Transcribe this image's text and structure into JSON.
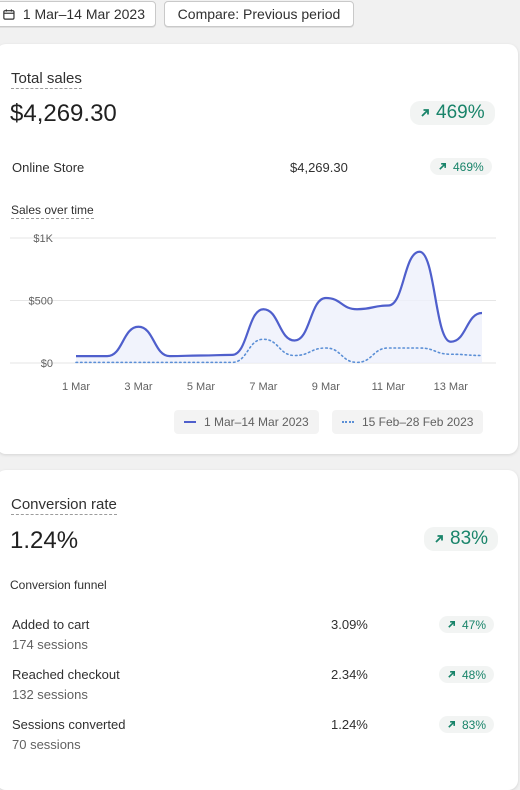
{
  "toolbar": {
    "date_range_label": "1 Mar–14 Mar 2023",
    "compare_label": "Compare: Previous period"
  },
  "sales": {
    "title": "Total sales",
    "total": "$4,269.30",
    "change": "469%",
    "channel": {
      "label": "Online Store",
      "value": "$4,269.30",
      "change": "469%"
    },
    "chart_title": "Sales over time"
  },
  "chart_data": {
    "type": "line",
    "title": "Sales over time",
    "x": [
      "1 Mar",
      "2 Mar",
      "3 Mar",
      "4 Mar",
      "5 Mar",
      "6 Mar",
      "7 Mar",
      "8 Mar",
      "9 Mar",
      "10 Mar",
      "11 Mar",
      "12 Mar",
      "13 Mar",
      "14 Mar"
    ],
    "x_tick_labels": [
      "1 Mar",
      "3 Mar",
      "5 Mar",
      "7 Mar",
      "9 Mar",
      "11 Mar",
      "13 Mar"
    ],
    "y_tick_labels": [
      "$1K",
      "$500",
      "$0"
    ],
    "ylim": [
      0,
      1000
    ],
    "grid": true,
    "legend_placement": "bottom-right",
    "series": [
      {
        "name": "1 Mar–14 Mar 2023",
        "style": "solid",
        "color": "#4f5fcc",
        "values": [
          55,
          55,
          290,
          55,
          60,
          65,
          430,
          180,
          520,
          430,
          460,
          890,
          170,
          400
        ]
      },
      {
        "name": "15 Feb–28 Feb 2023",
        "style": "dotted",
        "color": "#5b8fd6",
        "values": [
          5,
          5,
          5,
          5,
          5,
          5,
          190,
          60,
          120,
          5,
          120,
          120,
          70,
          60
        ]
      }
    ]
  },
  "conversion": {
    "title": "Conversion rate",
    "value": "1.24%",
    "change": "83%",
    "funnel_title": "Conversion funnel",
    "rows": [
      {
        "label": "Added to cart",
        "sessions": "174 sessions",
        "rate": "3.09%",
        "change": "47%"
      },
      {
        "label": "Reached checkout",
        "sessions": "132 sessions",
        "rate": "2.34%",
        "change": "48%"
      },
      {
        "label": "Sessions converted",
        "sessions": "70 sessions",
        "rate": "1.24%",
        "change": "83%"
      }
    ]
  },
  "colors": {
    "positive": "#19846a",
    "primary_line": "#4f5fcc",
    "comparison_line": "#5b8fd6"
  },
  "icons": {
    "calendar": "calendar-icon",
    "trend": "arrow-up-right-icon"
  }
}
